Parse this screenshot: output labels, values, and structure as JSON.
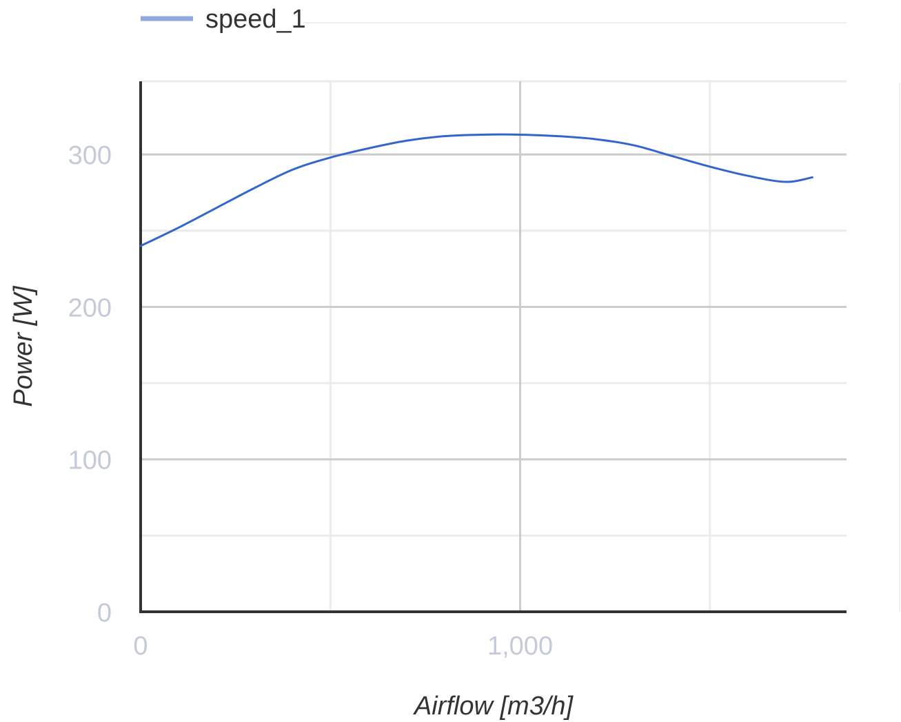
{
  "chart_data": {
    "type": "line",
    "xlabel": "Airflow [m3/h]",
    "ylabel": "Power [W]",
    "xlim": [
      0,
      1860
    ],
    "ylim": [
      0,
      348
    ],
    "x_ticks": [
      {
        "value": 0,
        "label": "0"
      },
      {
        "value": 1000,
        "label": "1,000"
      }
    ],
    "x_minor_gridlines": [
      500,
      1500
    ],
    "y_ticks": [
      {
        "value": 0,
        "label": "0"
      },
      {
        "value": 100,
        "label": "100"
      },
      {
        "value": 200,
        "label": "200"
      },
      {
        "value": 300,
        "label": "300"
      }
    ],
    "y_minor_gridlines": [
      50,
      150,
      250,
      348
    ],
    "grid": true,
    "legend": {
      "position": "top",
      "entries": [
        {
          "name": "speed_1",
          "color": "#8fa9de"
        }
      ]
    },
    "series": [
      {
        "name": "speed_1",
        "color": "#3366cc",
        "x": [
          0,
          100,
          200,
          300,
          400,
          500,
          600,
          700,
          800,
          900,
          1000,
          1100,
          1200,
          1300,
          1400,
          1500,
          1600,
          1700,
          1770
        ],
        "values": [
          240,
          252,
          265,
          278,
          290,
          298,
          304,
          309,
          312,
          313,
          313,
          312,
          310,
          306,
          299,
          292,
          286,
          282,
          285
        ]
      }
    ]
  }
}
